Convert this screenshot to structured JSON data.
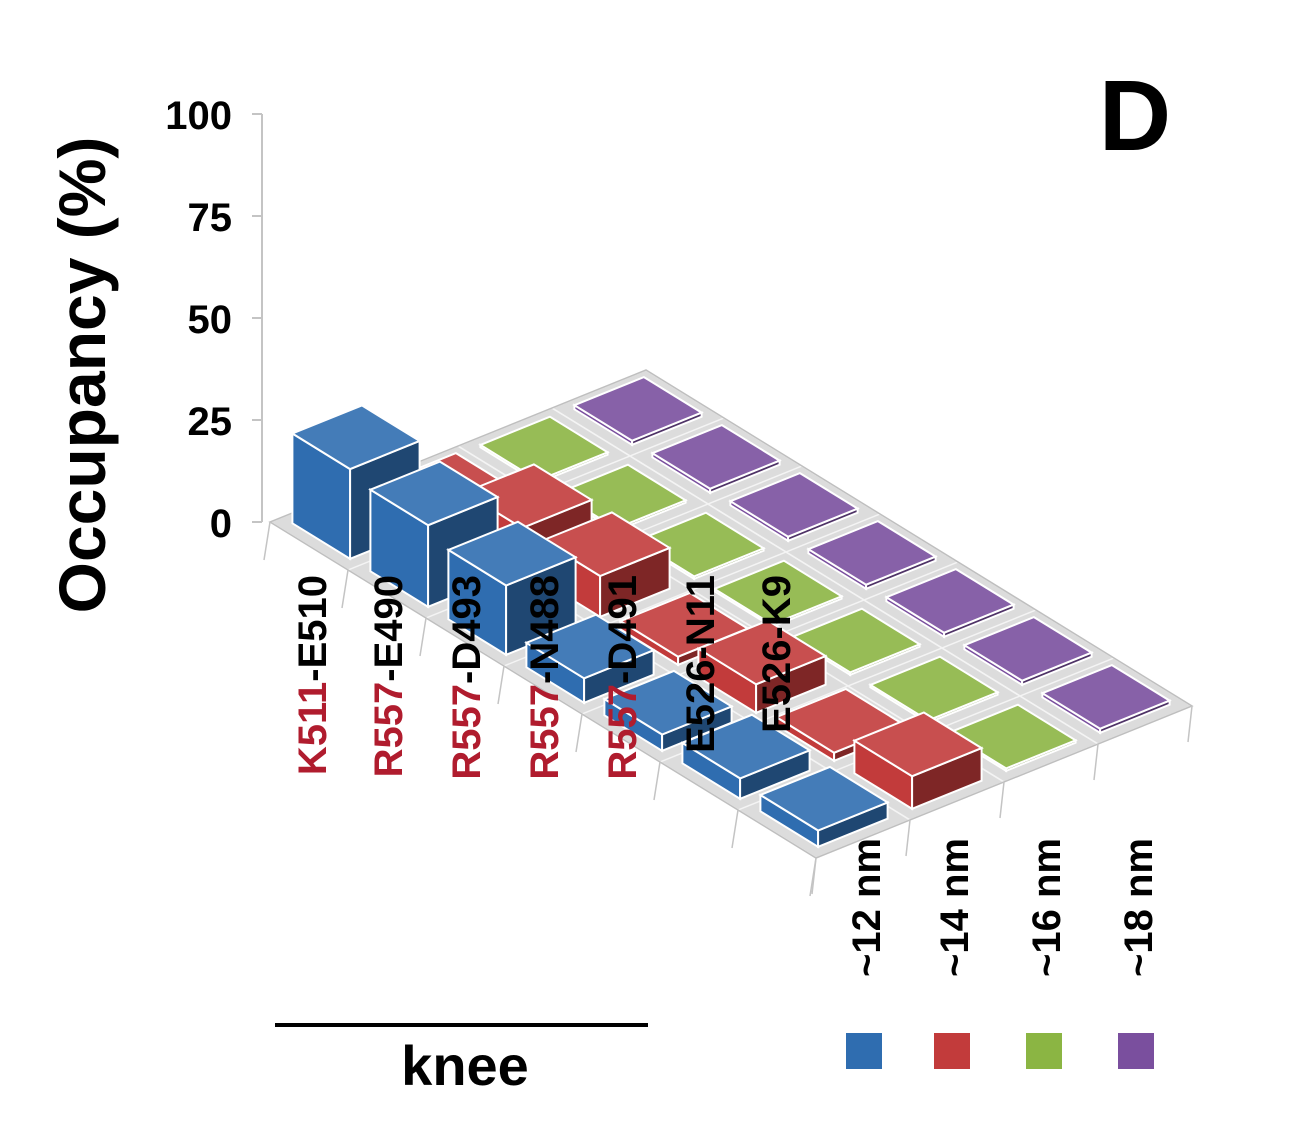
{
  "panel_label": "D",
  "chart_data": {
    "type": "bar",
    "subtype": "3d-bar",
    "ylabel": "Occupancy (%)",
    "yticks": [
      "100",
      "75",
      "50",
      "25",
      "0"
    ],
    "ylim": [
      0,
      100
    ],
    "grid": false,
    "categories": [
      {
        "label_parts": [
          {
            "text": "K511",
            "color": "#b01c2e"
          },
          {
            "text": "-E510",
            "color": "#000000"
          }
        ]
      },
      {
        "label_parts": [
          {
            "text": "R557",
            "color": "#b01c2e"
          },
          {
            "text": "-E490",
            "color": "#000000"
          }
        ]
      },
      {
        "label_parts": [
          {
            "text": "R557",
            "color": "#b01c2e"
          },
          {
            "text": "-D493",
            "color": "#000000"
          }
        ]
      },
      {
        "label_parts": [
          {
            "text": "R557",
            "color": "#b01c2e"
          },
          {
            "text": "-N488",
            "color": "#000000"
          }
        ]
      },
      {
        "label_parts": [
          {
            "text": "R557",
            "color": "#b01c2e"
          },
          {
            "text": "-D491",
            "color": "#000000"
          }
        ]
      },
      {
        "label_parts": [
          {
            "text": "E526-N11",
            "color": "#000000"
          }
        ]
      },
      {
        "label_parts": [
          {
            "text": "E526-K9",
            "color": "#000000"
          }
        ]
      }
    ],
    "group_bracket": {
      "label": "knee",
      "span_categories": 5
    },
    "series": [
      {
        "name": "~12 nm",
        "color": "#2f6db0",
        "values": [
          22,
          20,
          17,
          6,
          4,
          5,
          4
        ]
      },
      {
        "name": "~14 nm",
        "color": "#c23b3b",
        "values": [
          1,
          10,
          10,
          2,
          7,
          2,
          8
        ]
      },
      {
        "name": "~16 nm",
        "color": "#8bb543",
        "values": [
          0,
          0,
          0,
          0,
          0,
          0,
          0
        ]
      },
      {
        "name": "~18 nm",
        "color": "#7a4f9e",
        "values": [
          1,
          1,
          1,
          1,
          1,
          1,
          1
        ]
      }
    ]
  }
}
